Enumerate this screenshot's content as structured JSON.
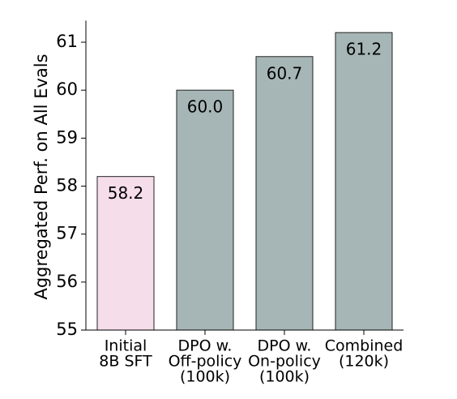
{
  "chart_data": {
    "type": "bar",
    "ylabel": "Aggregated Perf. on All Evals",
    "categories": [
      [
        "Initial",
        "8B SFT"
      ],
      [
        "DPO w.",
        "Off-policy",
        "(100k)"
      ],
      [
        "DPO w.",
        "On-policy",
        "(100k)"
      ],
      [
        "Combined",
        "(120k)"
      ]
    ],
    "values": [
      58.2,
      60.0,
      60.7,
      61.2
    ],
    "value_labels": [
      "58.2",
      "60.0",
      "60.7",
      "61.2"
    ],
    "colors": [
      "#f5dde9",
      "#a6b6b6",
      "#a6b6b6",
      "#a6b6b6"
    ],
    "ylim": [
      55,
      61.45
    ],
    "yticks": [
      55,
      56,
      57,
      58,
      59,
      60,
      61
    ],
    "grid": false
  }
}
